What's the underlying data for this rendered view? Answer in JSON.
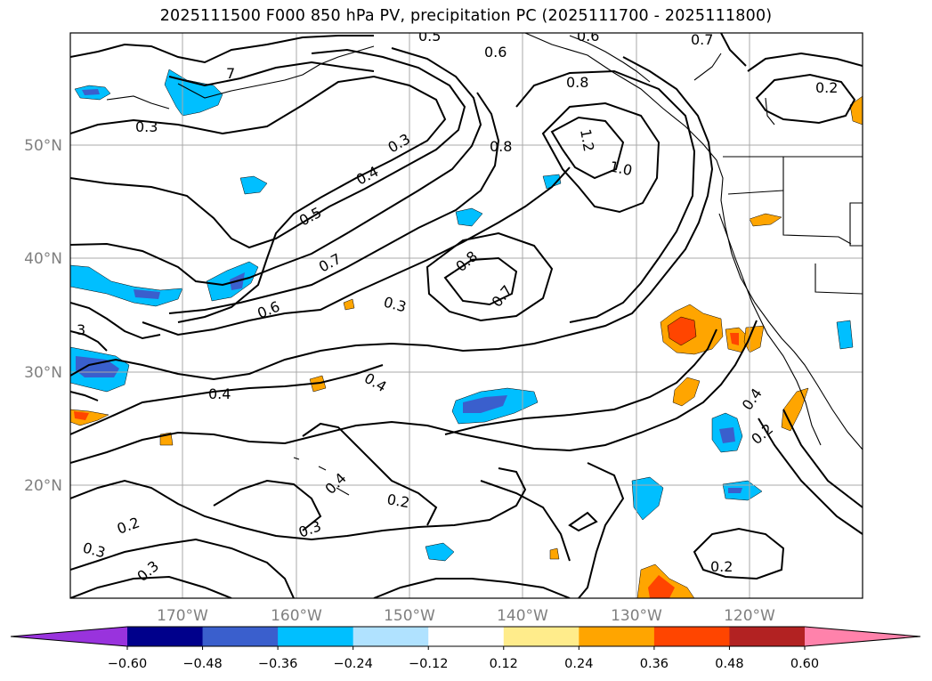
{
  "title": "2025111500 F000 850 hPa PV, precipitation PC (2025111700 - 2025111800)",
  "map": {
    "lat_labels": [
      "50°N",
      "40°N",
      "30°N",
      "20°N"
    ],
    "lon_labels": [
      "170°W",
      "160°W",
      "150°W",
      "140°W",
      "130°W",
      "120°W"
    ],
    "gridlines": true,
    "contour_labels": [
      "7",
      "0.3",
      "0.6",
      "0.8",
      "0.6",
      "0.7",
      "0.2",
      "0.3",
      "0.4",
      "0.8",
      "1.2",
      "1.0",
      "0.5",
      "0.8",
      "0.7",
      "0.7",
      "0.6",
      "0.3",
      "3",
      "0.4",
      "0.4",
      "0.4",
      "0.2",
      "0.4",
      "0.2",
      "0.3",
      "0.2",
      "0.3",
      "0.3",
      "0.2",
      "0.5"
    ]
  },
  "colorbar": {
    "ticks": [
      "−0.60",
      "−0.48",
      "−0.36",
      "−0.24",
      "−0.12",
      "0.12",
      "0.24",
      "0.36",
      "0.48",
      "0.60"
    ],
    "colors": [
      "#9933dd",
      "#00008b",
      "#3a5fcd",
      "#00bfff",
      "#b0e2ff",
      "#ffffff",
      "#ffec8b",
      "#ffa500",
      "#ff4500",
      "#b22222",
      "#ff82ab"
    ]
  }
}
